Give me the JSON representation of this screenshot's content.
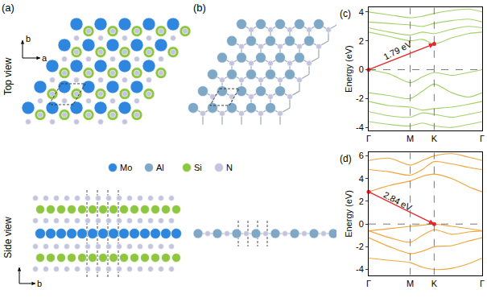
{
  "panels": {
    "a": {
      "label": "(a)"
    },
    "b": {
      "label": "(b)"
    },
    "row_labels": [
      "Top view",
      "Side view"
    ],
    "axes_top": [
      "a",
      "b"
    ],
    "axes_side": [
      "b"
    ],
    "atoms": [
      {
        "element": "Mo",
        "color": "#2e86de"
      },
      {
        "element": "Al",
        "color": "#7fa7c6"
      },
      {
        "element": "Si",
        "color": "#8dc63f"
      },
      {
        "element": "N",
        "color": "#c4c4de"
      }
    ]
  },
  "chart_data": [
    {
      "type": "line",
      "label": "(c)",
      "ylabel": "Energy (eV)",
      "x": [
        0,
        0.5,
        1,
        1.29,
        1.577,
        2.0,
        2.4,
        2.732
      ],
      "xlim": [
        0,
        2.732
      ],
      "xticks": [
        {
          "value": 0,
          "label": "Γ"
        },
        {
          "value": 1,
          "label": "M"
        },
        {
          "value": 1.577,
          "label": "K"
        },
        {
          "value": 2.732,
          "label": "Γ"
        }
      ],
      "ylim": [
        -4.2,
        4.3
      ],
      "yticks": [
        -4,
        -2,
        0,
        2,
        4
      ],
      "color": "#a3d16a",
      "hlines": [
        0
      ],
      "series": [
        {
          "values": [
            0,
            -0.3,
            -0.9,
            -0.5,
            -0.2,
            -0.4,
            -0.2,
            0
          ]
        },
        {
          "values": [
            -1.6,
            -1.8,
            -2.0,
            -1.5,
            -1.0,
            -1.6,
            -1.9,
            -1.6
          ]
        },
        {
          "values": [
            -2.2,
            -2.5,
            -2.6,
            -2.8,
            -2.7,
            -2.6,
            -2.4,
            -2.2
          ]
        },
        {
          "values": [
            -2.9,
            -3.2,
            -3.3,
            -3.0,
            -3.1,
            -3.3,
            -3.1,
            -2.9
          ]
        },
        {
          "values": [
            -3.6,
            -3.8,
            -3.9,
            -3.7,
            -3.9,
            -4.0,
            -3.8,
            -3.6
          ]
        },
        {
          "values": [
            2.6,
            2.3,
            2.0,
            2.1,
            1.79,
            2.2,
            2.5,
            2.6
          ]
        },
        {
          "values": [
            2.9,
            2.6,
            2.4,
            2.6,
            2.5,
            2.8,
            3.0,
            2.9
          ]
        },
        {
          "values": [
            3.3,
            3.2,
            3.1,
            3.0,
            3.2,
            3.4,
            3.5,
            3.3
          ]
        },
        {
          "values": [
            4.0,
            3.8,
            3.6,
            3.7,
            3.9,
            4.1,
            4.2,
            4.0
          ]
        }
      ],
      "arrow": {
        "x0": 0,
        "y0": 0,
        "x1": 1.577,
        "y1": 1.79,
        "label": "1.79 eV"
      }
    },
    {
      "type": "line",
      "label": "(d)",
      "ylabel": "Energy (eV)",
      "x": [
        0,
        0.5,
        1,
        1.29,
        1.577,
        2.0,
        2.4,
        2.732
      ],
      "xlim": [
        0,
        2.732
      ],
      "xticks": [
        {
          "value": 0,
          "label": "Γ"
        },
        {
          "value": 1,
          "label": "M"
        },
        {
          "value": 1.577,
          "label": "K"
        },
        {
          "value": 2.732,
          "label": "Γ"
        }
      ],
      "ylim": [
        -4.5,
        6.3
      ],
      "yticks": [
        -4,
        -2,
        0,
        2,
        4,
        6
      ],
      "color": "#f2a33a",
      "hlines": [
        0
      ],
      "series": [
        {
          "values": [
            -0.6,
            -0.4,
            -0.2,
            -0.1,
            0,
            -0.2,
            -0.4,
            -0.6
          ]
        },
        {
          "values": [
            -0.6,
            -1.2,
            -1.6,
            -1.0,
            -0.5,
            -0.9,
            -0.7,
            -0.6
          ]
        },
        {
          "values": [
            -1.2,
            -2.0,
            -2.6,
            -2.4,
            -2.0,
            -1.9,
            -1.5,
            -1.2
          ]
        },
        {
          "values": [
            -3.0,
            -3.2,
            -3.4,
            -3.8,
            -4.0,
            -3.9,
            -3.5,
            -3.0
          ]
        },
        {
          "values": [
            2.84,
            3.4,
            3.8,
            4.2,
            4.4,
            4.0,
            3.3,
            2.84
          ]
        },
        {
          "values": [
            4.8,
            4.6,
            4.3,
            4.8,
            5.5,
            5.3,
            5.0,
            4.8
          ]
        },
        {
          "values": [
            5.6,
            5.8,
            5.2,
            5.6,
            6.0,
            6.2,
            5.9,
            5.6
          ]
        }
      ],
      "arrow": {
        "x0": 0,
        "y0": 2.84,
        "x1": 1.577,
        "y1": 0,
        "label": "2.84 eV"
      }
    }
  ]
}
